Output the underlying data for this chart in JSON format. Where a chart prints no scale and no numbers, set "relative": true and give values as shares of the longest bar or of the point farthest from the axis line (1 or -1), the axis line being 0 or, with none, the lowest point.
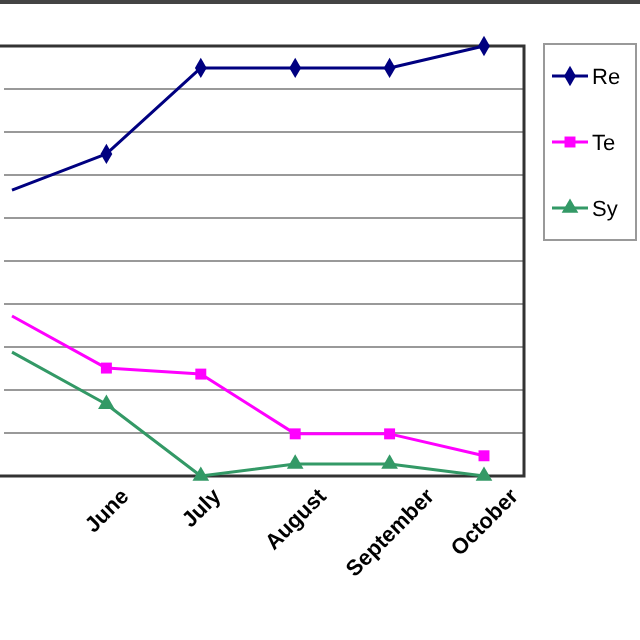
{
  "chart_data": {
    "type": "line",
    "relative": true,
    "grid": "y",
    "legend": "top right",
    "categories": [
      null,
      "June",
      "July",
      "August",
      "September",
      "October"
    ],
    "series": [
      {
        "name": "Re",
        "color": "#000080",
        "marker": "diamond",
        "values": [
          0.665,
          0.749,
          0.949,
          0.949,
          0.949,
          1
        ]
      },
      {
        "name": "Te",
        "color": "#ff00ff",
        "marker": "square",
        "values": [
          0.372,
          0.251,
          0.237,
          0.098,
          0.098,
          0.047
        ]
      },
      {
        "name": "Sy",
        "color": "#339966",
        "marker": "triangle",
        "values": [
          0.288,
          0.167,
          0,
          0.028,
          0.028,
          0
        ]
      }
    ]
  }
}
